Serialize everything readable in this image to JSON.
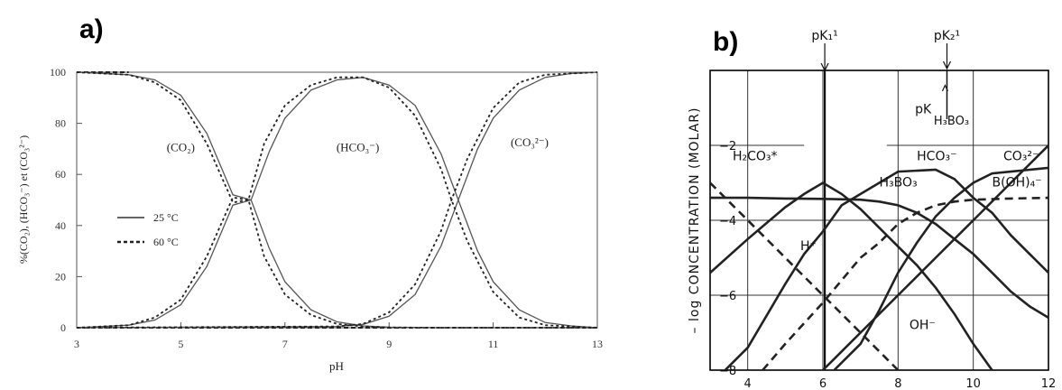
{
  "panels": {
    "a_label": "a)",
    "b_label": "b)"
  },
  "chart_data": [
    {
      "type": "line",
      "panel": "a)",
      "xlabel": "pH",
      "ylabel": "%(CO₂), (HCO₃⁻) et (CO₃²⁻)",
      "xlim": [
        3,
        13
      ],
      "ylim": [
        0,
        100
      ],
      "xticks": [
        3,
        5,
        7,
        9,
        11,
        13
      ],
      "yticks": [
        0,
        20,
        40,
        60,
        80,
        100
      ],
      "grid": false,
      "legend_position": "left",
      "legend": [
        {
          "label": "25 °C",
          "style": "solid"
        },
        {
          "label": "60 °C",
          "style": "dashed"
        }
      ],
      "species_labels": [
        {
          "text": "(CO₂)",
          "x": 5.0,
          "y": 69
        },
        {
          "text": "(HCO₃⁻)",
          "x": 8.4,
          "y": 69
        },
        {
          "text": "(CO₃²⁻)",
          "x": 11.7,
          "y": 71
        }
      ],
      "series": [
        {
          "name": "25 °C",
          "species": "(CO₂)",
          "style": "solid",
          "x": [
            3,
            4,
            4.5,
            5,
            5.5,
            6,
            6.35,
            6.7,
            7,
            7.5,
            8,
            8.5,
            9,
            10,
            11,
            12,
            13
          ],
          "y": [
            100,
            99,
            97,
            91,
            76,
            52,
            50,
            31,
            18,
            7,
            2.3,
            0.7,
            0.2,
            0,
            0,
            0,
            0
          ]
        },
        {
          "name": "25 °C",
          "species": "(HCO₃⁻)",
          "style": "solid",
          "x": [
            3,
            4,
            4.5,
            5,
            5.5,
            6,
            6.35,
            6.7,
            7,
            7.5,
            8,
            8.5,
            9,
            9.5,
            10,
            10.33,
            10.7,
            11,
            11.5,
            12,
            12.5,
            13
          ],
          "y": [
            0,
            1,
            3,
            9,
            24,
            48,
            50,
            69,
            82,
            93,
            97,
            98,
            95,
            87,
            68,
            50,
            30,
            18,
            7,
            2,
            0.7,
            0
          ]
        },
        {
          "name": "25 °C",
          "species": "(CO₃²⁻)",
          "style": "solid",
          "x": [
            3,
            8,
            8.5,
            9,
            9.5,
            10,
            10.33,
            10.7,
            11,
            11.5,
            12,
            12.5,
            13
          ],
          "y": [
            0,
            0.5,
            1.3,
            4.5,
            13,
            32,
            50,
            70,
            82,
            93,
            98,
            99.5,
            100
          ]
        },
        {
          "name": "60 °C",
          "species": "(CO₂)",
          "style": "dashed",
          "x": [
            3,
            4,
            4.5,
            5,
            5.5,
            6,
            6.3,
            6.6,
            7,
            7.5,
            8,
            8.5,
            9,
            10,
            13
          ],
          "y": [
            100,
            99,
            96,
            89,
            72,
            49,
            50,
            28,
            13,
            5,
            1.5,
            0.5,
            0.1,
            0,
            0
          ]
        },
        {
          "name": "60 °C",
          "species": "(HCO₃⁻)",
          "style": "dashed",
          "x": [
            3,
            4,
            4.5,
            5,
            5.5,
            6,
            6.3,
            6.6,
            7,
            7.5,
            8,
            8.5,
            9,
            9.5,
            10,
            10.2,
            10.5,
            11,
            11.5,
            12,
            13
          ],
          "y": [
            0,
            1,
            4,
            11,
            28,
            51,
            50,
            72,
            87,
            95,
            98,
            98,
            94,
            83,
            62,
            50,
            34,
            14,
            4,
            1,
            0
          ]
        },
        {
          "name": "60 °C",
          "species": "(CO₃²⁻)",
          "style": "dashed",
          "x": [
            3,
            8,
            8.5,
            9,
            9.5,
            10,
            10.2,
            10.5,
            11,
            11.5,
            12,
            13
          ],
          "y": [
            0,
            0.5,
            1.5,
            6,
            17,
            38,
            50,
            66,
            86,
            96,
            99,
            100
          ]
        }
      ]
    },
    {
      "type": "line",
      "panel": "b)",
      "xlabel": "",
      "ylabel": "– log  CONCENTRATION  (MOLAR)",
      "xlim": [
        3,
        12
      ],
      "ylim": [
        -8,
        0
      ],
      "xticks": [
        4,
        6,
        8,
        10,
        12
      ],
      "yticks": [
        -2,
        -4,
        -6,
        -8
      ],
      "grid": true,
      "top_markers": [
        {
          "text": "pK₁¹",
          "x": 6.05
        },
        {
          "text": "pK₂¹",
          "x": 9.3
        },
        {
          "text": "pK",
          "sub": "H₃BO₃",
          "x": 9.25
        }
      ],
      "species_labels": [
        {
          "text": "H₂CO₃*",
          "x": 3.6,
          "y": -2.4
        },
        {
          "text": "HCO₃⁻",
          "x": 8.5,
          "y": -2.4
        },
        {
          "text": "CO₃²⁻",
          "x": 10.8,
          "y": -2.4
        },
        {
          "text": "H₃BO₃",
          "x": 7.5,
          "y": -3.1
        },
        {
          "text": "B(OH)₄⁻",
          "x": 10.5,
          "y": -3.1
        },
        {
          "text": "H⁺",
          "x": 5.4,
          "y": -4.8
        },
        {
          "text": "OH⁻",
          "x": 8.3,
          "y": -6.9
        }
      ],
      "series": [
        {
          "name": "H₂CO₃*",
          "style": "solid",
          "x": [
            3,
            4,
            5,
            5.5,
            6,
            6.5,
            7,
            7.5,
            8,
            8.5,
            9,
            9.5,
            10,
            10.5
          ],
          "y": [
            -5.4,
            -4.5,
            -3.65,
            -3.3,
            -3.0,
            -3.3,
            -3.7,
            -4.2,
            -4.7,
            -5.2,
            -5.8,
            -6.5,
            -7.3,
            -8.0
          ]
        },
        {
          "name": "HCO₃⁻",
          "style": "solid",
          "x": [
            3,
            4,
            5,
            5.5,
            6,
            6.5,
            7,
            8,
            9,
            9.5,
            10,
            10.5,
            11,
            11.5,
            12
          ],
          "y": [
            -8.4,
            -7.4,
            -5.7,
            -4.9,
            -4.3,
            -3.6,
            -3.3,
            -2.7,
            -2.65,
            -2.9,
            -3.4,
            -3.8,
            -4.4,
            -4.9,
            -5.4
          ]
        },
        {
          "name": "CO₃²⁻",
          "style": "solid",
          "x": [
            6.3,
            7,
            7.5,
            8,
            8.5,
            9,
            9.5,
            10,
            10.5,
            11,
            11.5,
            12
          ],
          "y": [
            -8,
            -7.3,
            -6.4,
            -5.4,
            -4.6,
            -3.9,
            -3.4,
            -3.0,
            -2.75,
            -2.7,
            -2.65,
            -2.6
          ]
        },
        {
          "name": "H₃BO₃",
          "style": "solid",
          "x": [
            3,
            4,
            5,
            6,
            7,
            7.5,
            8,
            8.5,
            9,
            9.5,
            10,
            10.5,
            11,
            11.5,
            12
          ],
          "y": [
            -3.4,
            -3.4,
            -3.42,
            -3.43,
            -3.45,
            -3.5,
            -3.6,
            -3.8,
            -4.1,
            -4.5,
            -4.9,
            -5.4,
            -5.9,
            -6.3,
            -6.6
          ]
        },
        {
          "name": "B(OH)₄⁻",
          "style": "dashed",
          "x": [
            4.4,
            5,
            6,
            7,
            7.5,
            8,
            8.5,
            9,
            9.5,
            10,
            11,
            12
          ],
          "y": [
            -8,
            -7.3,
            -6.2,
            -5.0,
            -4.6,
            -4.1,
            -3.8,
            -3.6,
            -3.5,
            -3.45,
            -3.42,
            -3.4
          ]
        },
        {
          "name": "H⁺",
          "style": "dashed",
          "x": [
            3,
            4,
            5,
            6,
            7,
            8
          ],
          "y": [
            -3,
            -4,
            -5,
            -6,
            -7,
            -8
          ]
        },
        {
          "name": "OH⁻",
          "style": "solid",
          "x": [
            5.5,
            6,
            7,
            8,
            9,
            10,
            11,
            12
          ],
          "y": [
            -8.5,
            -8,
            -7,
            -6,
            -5,
            -4,
            -3,
            -2
          ]
        }
      ]
    }
  ]
}
